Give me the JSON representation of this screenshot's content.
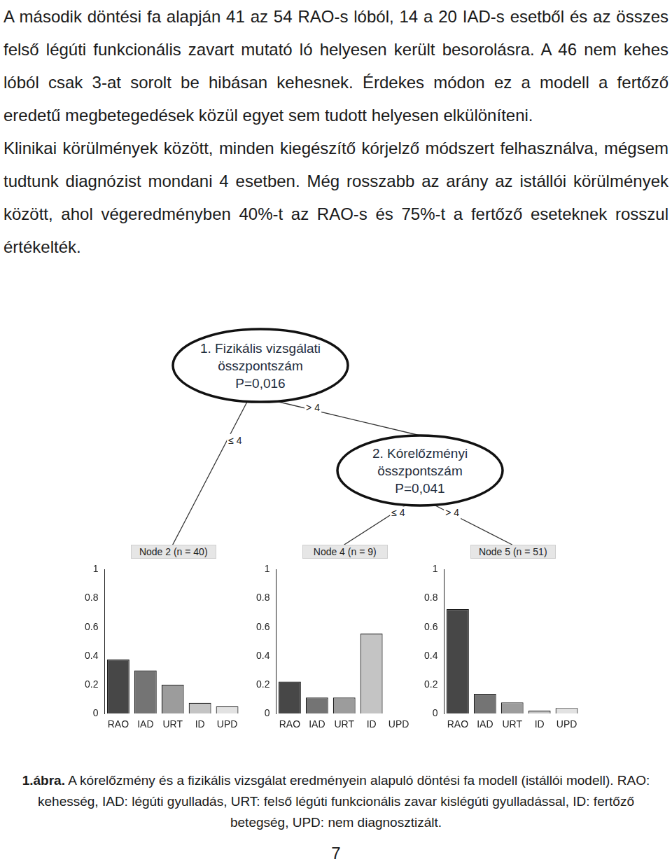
{
  "paragraphs": [
    "A második döntési fa alapján 41 az 54 RAO-s lóból, 14 a 20 IAD-s esetből és az összes felső légúti funkcionális zavart mutató ló helyesen került besorolásra. A 46 nem kehes lóból csak 3-at sorolt be hibásan kehesnek. Érdekes módon ez a modell a fertőző eredetű megbetegedések közül egyet sem tudott helyesen elkülöníteni.",
    "Klinikai körülmények között, minden kiegészítő kórjelző módszert felhasználva, mégsem tudtunk diagnózist mondani 4 esetben. Még rosszabb az arány az istállói körülmények között, ahol végeredményben 40%-t az RAO-s és 75%-t a fertőző eseteknek rosszul értékelték."
  ],
  "tree": {
    "nodes": [
      {
        "lines": [
          "1. Fizikális vizsgálati",
          "összpontszám",
          "P=0,016"
        ],
        "branches": [
          "≤ 4",
          "> 4"
        ]
      },
      {
        "lines": [
          "2. Kórelőzményi",
          "összpontszám",
          "P=0,041"
        ],
        "branches": [
          "≤ 4",
          "> 4"
        ]
      }
    ]
  },
  "chart_data": [
    {
      "type": "bar",
      "title": "Node 2 (n = 40)",
      "categories": [
        "RAO",
        "IAD",
        "URT",
        "ID",
        "UPD"
      ],
      "values": [
        0.375,
        0.3,
        0.2,
        0.075,
        0.05
      ],
      "colors": [
        "#474747",
        "#747474",
        "#9c9c9c",
        "#c4c4c4",
        "#e2e2e2"
      ],
      "ylim": [
        0,
        1
      ],
      "yticks": [
        0,
        0.2,
        0.4,
        0.6,
        0.8,
        1
      ],
      "grid": false
    },
    {
      "type": "bar",
      "title": "Node 4 (n = 9)",
      "categories": [
        "RAO",
        "IAD",
        "URT",
        "ID",
        "UPD"
      ],
      "values": [
        0.222,
        0.111,
        0.111,
        0.556,
        0
      ],
      "colors": [
        "#474747",
        "#747474",
        "#9c9c9c",
        "#c4c4c4",
        "#e2e2e2"
      ],
      "ylim": [
        0,
        1
      ],
      "yticks": [
        0,
        0.2,
        0.4,
        0.6,
        0.8,
        1
      ],
      "grid": false
    },
    {
      "type": "bar",
      "title": "Node 5 (n = 51)",
      "categories": [
        "RAO",
        "IAD",
        "URT",
        "ID",
        "UPD"
      ],
      "values": [
        0.725,
        0.137,
        0.078,
        0.02,
        0.039
      ],
      "colors": [
        "#474747",
        "#747474",
        "#9c9c9c",
        "#c4c4c4",
        "#e2e2e2"
      ],
      "ylim": [
        0,
        1
      ],
      "yticks": [
        0,
        0.2,
        0.4,
        0.6,
        0.8,
        1
      ],
      "grid": false
    }
  ],
  "caption": {
    "label": "1.ábra.",
    "text": "A kórelőzmény és a fizikális vizsgálat eredményein alapuló döntési fa modell (istállói modell). RAO: kehesség, IAD: légúti gyulladás, URT: felső légúti funkcionális zavar kislégúti gyulladással, ID: fertőző betegség, UPD: nem diagnosztizált."
  },
  "page_number": "7"
}
